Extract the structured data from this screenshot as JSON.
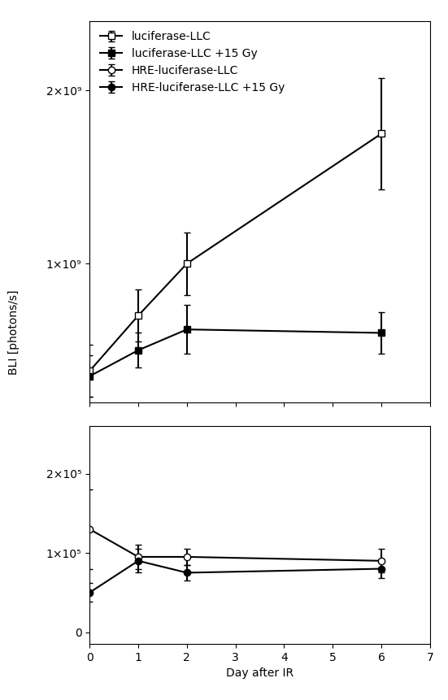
{
  "chart_data": [
    {
      "type": "line",
      "x": [
        0,
        1,
        2,
        6
      ],
      "xlim": [
        0,
        7
      ],
      "xticks": [
        0,
        1,
        2,
        3,
        4,
        5,
        6,
        7
      ],
      "ylim": [
        200000000.0,
        2400000000.0
      ],
      "yticks": [
        {
          "value": 1000000000.0,
          "label": "1×10⁹"
        },
        {
          "value": 2000000000.0,
          "label": "2×10⁹"
        }
      ],
      "y_label": "BLI [photons/s]",
      "tick_labels": "y",
      "legend": "upper left",
      "series": [
        {
          "name": "luciferase-LLC",
          "color": "#000000",
          "marker": "square_open",
          "values": [
            380000000.0,
            700000000.0,
            1000000000.0,
            1750000000.0
          ],
          "errors": [
            150000000.0,
            150000000.0,
            180000000.0,
            320000000.0
          ]
        },
        {
          "name": "luciferase-LLC +15 Gy",
          "color": "#000000",
          "marker": "square_filled",
          "values": [
            350000000.0,
            500000000.0,
            620000000.0,
            600000000.0
          ],
          "errors": [
            120000000.0,
            100000000.0,
            140000000.0,
            120000000.0
          ]
        }
      ]
    },
    {
      "type": "line",
      "x": [
        0,
        1,
        2,
        6
      ],
      "xlim": [
        0,
        7
      ],
      "xticks": [
        0,
        1,
        2,
        3,
        4,
        5,
        6,
        7
      ],
      "ylim": [
        -15000.0,
        260000.0
      ],
      "yticks": [
        0,
        {
          "value": 100000.0,
          "label": "1×10⁵"
        },
        {
          "value": 200000.0,
          "label": "2×10⁵"
        }
      ],
      "x_label": "Day after IR",
      "series": [
        {
          "name": "HRE-luciferase-LLC",
          "color": "#000000",
          "marker": "circle_open",
          "values": [
            130000.0,
            95000.0,
            95000.0,
            90000.0
          ],
          "errors": [
            50000.0,
            15000.0,
            10000.0,
            15000.0
          ]
        },
        {
          "name": "HRE-luciferase-LLC +15 Gy",
          "color": "#000000",
          "marker": "circle_filled",
          "values": [
            50000.0,
            90000.0,
            75000.0,
            80000.0
          ],
          "errors": [
            12000.0,
            15000.0,
            10000.0,
            12000.0
          ]
        }
      ]
    }
  ]
}
